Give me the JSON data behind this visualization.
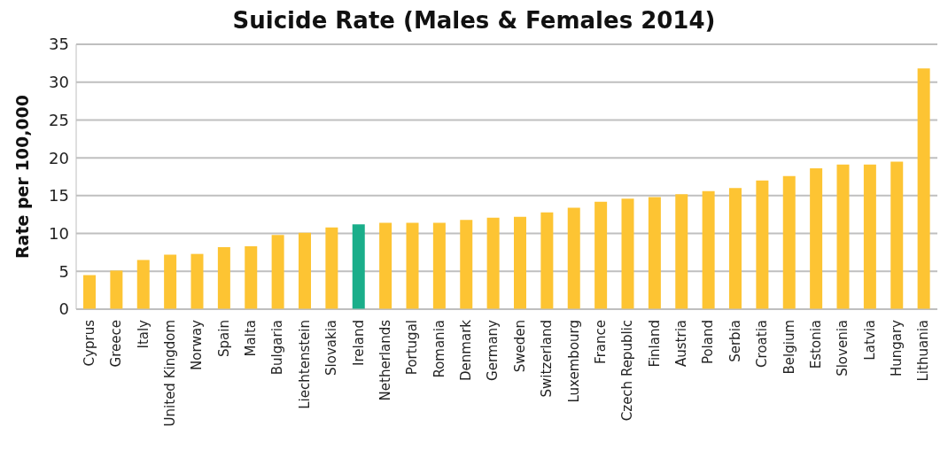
{
  "chart_data": {
    "type": "bar",
    "title": "Suicide Rate (Males & Females 2014)",
    "ylabel": "Rate per 100,000",
    "categories": [
      "Cyprus",
      "Greece",
      "Italy",
      "United Kingdom",
      "Norway",
      "Spain",
      "Malta",
      "Bulgaria",
      "Liechtenstein",
      "Slovakia",
      "Ireland",
      "Netherlands",
      "Portugal",
      "Romania",
      "Denmark",
      "Germany",
      "Sweden",
      "Switzerland",
      "Luxembourg",
      "France",
      "Czech Republic",
      "Finland",
      "Austria",
      "Poland",
      "Serbia",
      "Croatia",
      "Belgium",
      "Estonia",
      "Slovenia",
      "Latvia",
      "Hungary",
      "Lithuania"
    ],
    "values": [
      4.5,
      5.1,
      6.5,
      7.2,
      7.3,
      8.2,
      8.3,
      9.8,
      10.1,
      10.8,
      11.2,
      11.4,
      11.4,
      11.4,
      11.8,
      12.1,
      12.2,
      12.8,
      13.4,
      14.2,
      14.6,
      14.8,
      15.2,
      15.6,
      16.0,
      17.0,
      17.6,
      18.6,
      19.1,
      19.1,
      19.5,
      31.8
    ],
    "colors": [
      "#fdc433",
      "#fdc433",
      "#fdc433",
      "#fdc433",
      "#fdc433",
      "#fdc433",
      "#fdc433",
      "#fdc433",
      "#fdc433",
      "#fdc433",
      "#1aae8a",
      "#fdc433",
      "#fdc433",
      "#fdc433",
      "#fdc433",
      "#fdc433",
      "#fdc433",
      "#fdc433",
      "#fdc433",
      "#fdc433",
      "#fdc433",
      "#fdc433",
      "#fdc433",
      "#fdc433",
      "#fdc433",
      "#fdc433",
      "#fdc433",
      "#fdc433",
      "#fdc433",
      "#fdc433",
      "#fdc433",
      "#fdc433"
    ],
    "ylim": [
      0,
      35
    ],
    "yticks": [
      0,
      5,
      10,
      15,
      20,
      25,
      30,
      35
    ],
    "grid": "y"
  }
}
